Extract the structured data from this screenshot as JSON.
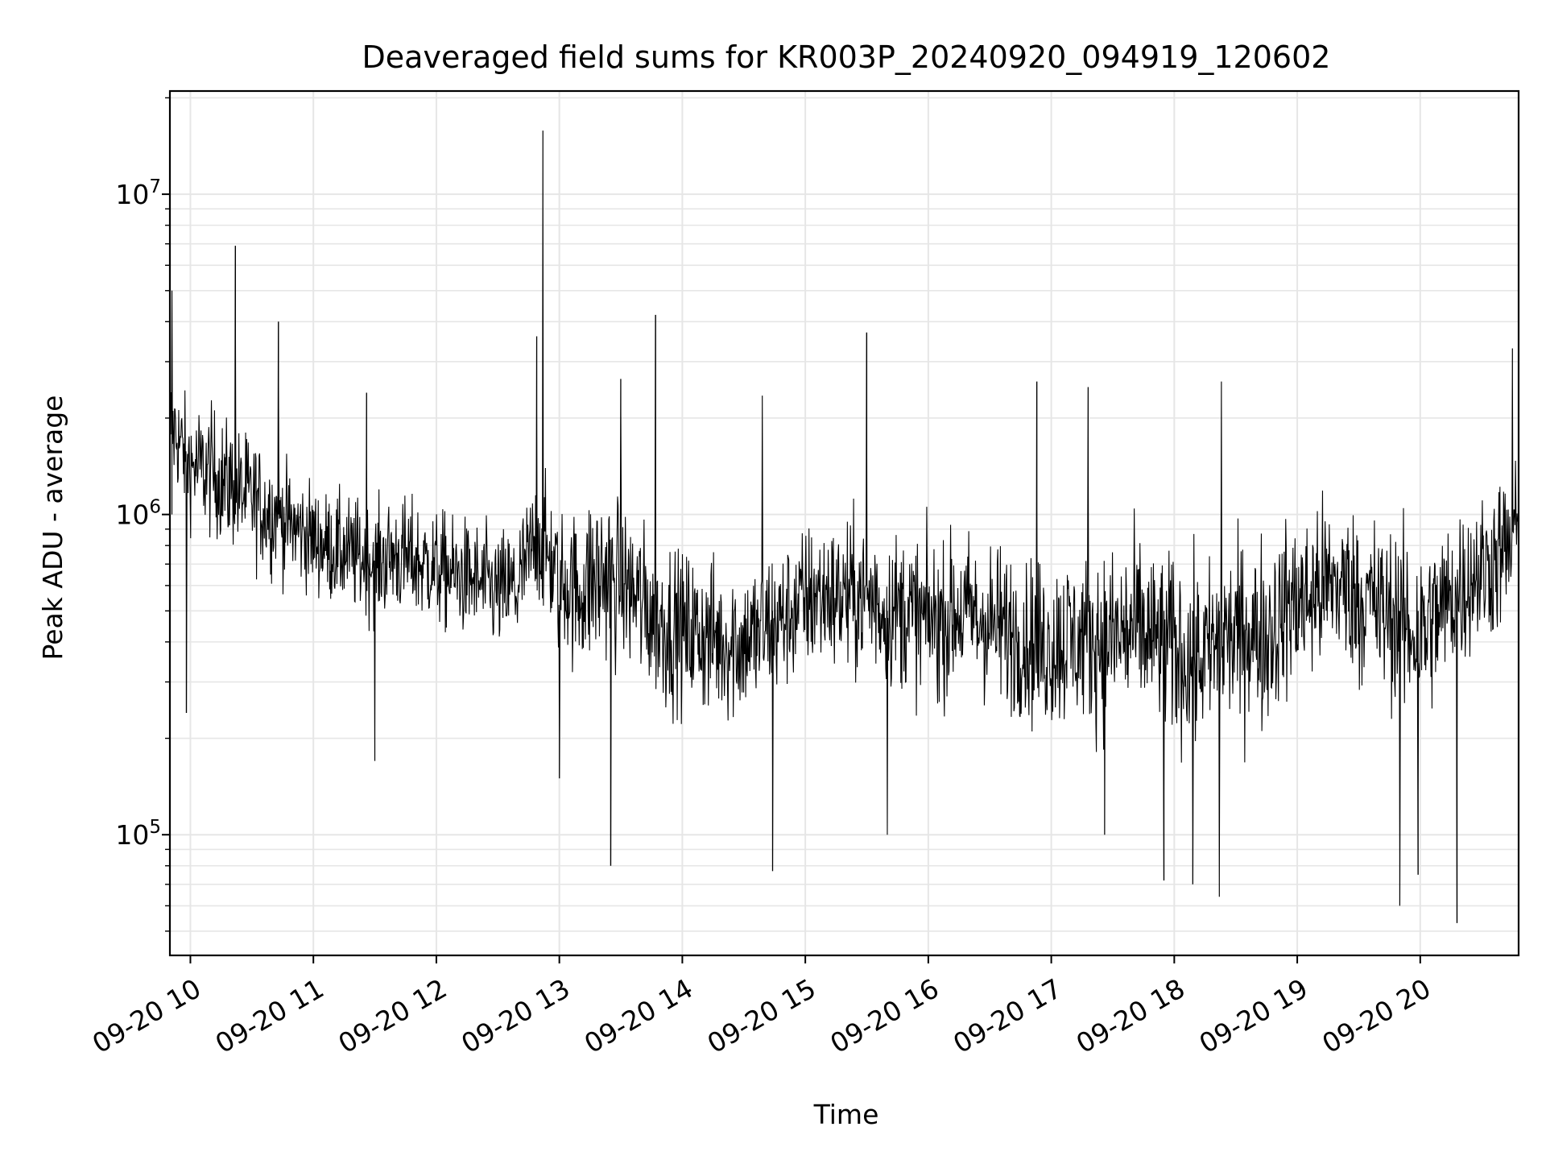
{
  "chart_data": {
    "type": "line",
    "title": "Deaveraged field sums for KR003P_20240920_094919_120602",
    "xlabel": "Time",
    "ylabel": "Peak ADU - average",
    "yscale": "log",
    "ylim": [
      42000,
      21000000
    ],
    "xlim": [
      "2024-09-20 09:50",
      "2024-09-20 20:48"
    ],
    "grid": true,
    "line_color": "#000000",
    "grid_color": "#e6e6e6",
    "x_ticks": [
      {
        "label": "09-20 10",
        "time": "2024-09-20 10:00"
      },
      {
        "label": "09-20 11",
        "time": "2024-09-20 11:00"
      },
      {
        "label": "09-20 12",
        "time": "2024-09-20 12:00"
      },
      {
        "label": "09-20 13",
        "time": "2024-09-20 13:00"
      },
      {
        "label": "09-20 14",
        "time": "2024-09-20 14:00"
      },
      {
        "label": "09-20 15",
        "time": "2024-09-20 15:00"
      },
      {
        "label": "09-20 16",
        "time": "2024-09-20 16:00"
      },
      {
        "label": "09-20 17",
        "time": "2024-09-20 17:00"
      },
      {
        "label": "09-20 18",
        "time": "2024-09-20 18:00"
      },
      {
        "label": "09-20 19",
        "time": "2024-09-20 19:00"
      },
      {
        "label": "09-20 20",
        "time": "2024-09-20 20:00"
      }
    ],
    "y_ticks": [
      {
        "base": "10",
        "exp": "5",
        "value": 100000
      },
      {
        "base": "10",
        "exp": "6",
        "value": 1000000
      },
      {
        "base": "10",
        "exp": "7",
        "value": 10000000
      }
    ],
    "series": [
      {
        "x": [
          "2024-09-20 09:50",
          "2024-09-20 10:00",
          "2024-09-20 10:10",
          "2024-09-20 10:20",
          "2024-09-20 10:30",
          "2024-09-20 10:40",
          "2024-09-20 10:50",
          "2024-09-20 11:00",
          "2024-09-20 11:10",
          "2024-09-20 11:20",
          "2024-09-20 11:30",
          "2024-09-20 11:40",
          "2024-09-20 11:50",
          "2024-09-20 12:00",
          "2024-09-20 12:10",
          "2024-09-20 12:20",
          "2024-09-20 12:30",
          "2024-09-20 12:40",
          "2024-09-20 12:50",
          "2024-09-20 13:00",
          "2024-09-20 13:10",
          "2024-09-20 13:20",
          "2024-09-20 13:30",
          "2024-09-20 13:40",
          "2024-09-20 13:50",
          "2024-09-20 14:00",
          "2024-09-20 14:10",
          "2024-09-20 14:20",
          "2024-09-20 14:30",
          "2024-09-20 14:40",
          "2024-09-20 14:50",
          "2024-09-20 15:00",
          "2024-09-20 15:10",
          "2024-09-20 15:20",
          "2024-09-20 15:30",
          "2024-09-20 15:40",
          "2024-09-20 15:50",
          "2024-09-20 16:00",
          "2024-09-20 16:10",
          "2024-09-20 16:20",
          "2024-09-20 16:30",
          "2024-09-20 16:40",
          "2024-09-20 16:50",
          "2024-09-20 17:00",
          "2024-09-20 17:10",
          "2024-09-20 17:20",
          "2024-09-20 17:30",
          "2024-09-20 17:40",
          "2024-09-20 17:50",
          "2024-09-20 18:00",
          "2024-09-20 18:10",
          "2024-09-20 18:20",
          "2024-09-20 18:30",
          "2024-09-20 18:40",
          "2024-09-20 18:50",
          "2024-09-20 19:00",
          "2024-09-20 19:10",
          "2024-09-20 19:20",
          "2024-09-20 19:30",
          "2024-09-20 19:40",
          "2024-09-20 19:50",
          "2024-09-20 20:00",
          "2024-09-20 20:10",
          "2024-09-20 20:20",
          "2024-09-20 20:30",
          "2024-09-20 20:40",
          "2024-09-20 20:48"
        ],
        "median": [
          2000000,
          1400000,
          1300000,
          1200000,
          1100000,
          1050000,
          1000000,
          900000,
          850000,
          800000,
          780000,
          800000,
          750000,
          720000,
          700000,
          650000,
          600000,
          620000,
          900000,
          700000,
          650000,
          800000,
          700000,
          650000,
          500000,
          480000,
          450000,
          420000,
          420000,
          450000,
          500000,
          550000,
          600000,
          600000,
          600000,
          550000,
          520000,
          500000,
          500000,
          520000,
          480000,
          450000,
          420000,
          400000,
          420000,
          400000,
          420000,
          450000,
          420000,
          400000,
          380000,
          400000,
          420000,
          420000,
          450000,
          550000,
          600000,
          650000,
          600000,
          550000,
          500000,
          450000,
          500000,
          650000,
          700000,
          800000,
          900000
        ],
        "low": [
          900000,
          700000,
          600000,
          550000,
          500000,
          450000,
          450000,
          420000,
          380000,
          350000,
          330000,
          330000,
          330000,
          320000,
          300000,
          280000,
          260000,
          260000,
          350000,
          220000,
          200000,
          180000,
          200000,
          170000,
          150000,
          150000,
          140000,
          140000,
          140000,
          150000,
          170000,
          200000,
          200000,
          200000,
          190000,
          180000,
          170000,
          160000,
          160000,
          170000,
          150000,
          140000,
          130000,
          120000,
          130000,
          130000,
          120000,
          120000,
          120000,
          110000,
          100000,
          110000,
          120000,
          120000,
          130000,
          160000,
          180000,
          200000,
          180000,
          160000,
          140000,
          120000,
          150000,
          200000,
          220000,
          260000,
          280000
        ],
        "high": [
          4000000,
          3000000,
          3200000,
          2800000,
          2500000,
          2200000,
          1800000,
          1600000,
          1500000,
          1500000,
          1400000,
          1600000,
          1500000,
          1400000,
          1300000,
          1300000,
          1200000,
          1300000,
          2000000,
          1700000,
          1500000,
          2000000,
          1800000,
          1600000,
          1300000,
          1200000,
          1200000,
          1100000,
          1100000,
          1200000,
          1300000,
          1400000,
          1500000,
          1500000,
          1500000,
          1400000,
          1400000,
          1300000,
          1300000,
          1400000,
          1300000,
          1300000,
          1200000,
          1200000,
          1300000,
          1200000,
          1400000,
          1500000,
          1400000,
          1300000,
          1200000,
          1300000,
          1400000,
          1400000,
          1500000,
          1700000,
          1800000,
          1800000,
          1700000,
          1600000,
          1500000,
          1400000,
          1500000,
          1700000,
          1800000,
          2000000,
          2500000
        ]
      }
    ],
    "spikes": [
      {
        "time": "2024-09-20 12:52",
        "value": 15800000
      },
      {
        "time": "2024-09-20 10:22",
        "value": 6900000
      },
      {
        "time": "2024-09-20 09:51",
        "value": 5000000
      },
      {
        "time": "2024-09-20 13:47",
        "value": 4200000
      },
      {
        "time": "2024-09-20 10:43",
        "value": 4000000
      },
      {
        "time": "2024-09-20 15:30",
        "value": 3700000
      },
      {
        "time": "2024-09-20 20:45",
        "value": 3300000
      },
      {
        "time": "2024-09-20 12:49",
        "value": 3600000
      },
      {
        "time": "2024-09-20 18:23",
        "value": 2600000
      },
      {
        "time": "2024-09-20 17:18",
        "value": 2500000
      },
      {
        "time": "2024-09-20 14:39",
        "value": 2350000
      },
      {
        "time": "2024-09-20 11:26",
        "value": 2400000
      },
      {
        "time": "2024-09-20 13:30",
        "value": 2650000
      },
      {
        "time": "2024-09-20 16:53",
        "value": 2600000
      },
      {
        "time": "2024-09-20 13:25",
        "value": 80000
      },
      {
        "time": "2024-09-20 14:44",
        "value": 77000
      },
      {
        "time": "2024-09-20 18:22",
        "value": 64000
      },
      {
        "time": "2024-09-20 19:50",
        "value": 60000
      },
      {
        "time": "2024-09-20 20:18",
        "value": 53000
      },
      {
        "time": "2024-09-20 17:55",
        "value": 72000
      },
      {
        "time": "2024-09-20 09:58",
        "value": 240000
      },
      {
        "time": "2024-09-20 11:30",
        "value": 170000
      },
      {
        "time": "2024-09-20 13:00",
        "value": 150000
      },
      {
        "time": "2024-09-20 18:09",
        "value": 70000
      },
      {
        "time": "2024-09-20 19:59",
        "value": 75000
      },
      {
        "time": "2024-09-20 15:40",
        "value": 100000
      },
      {
        "time": "2024-09-20 17:26",
        "value": 100000
      }
    ]
  }
}
